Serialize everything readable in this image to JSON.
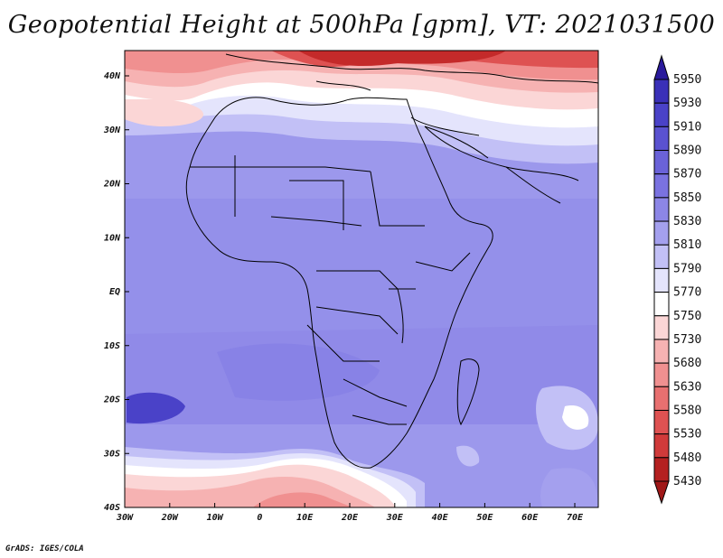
{
  "title": "Geopotential Height at 500hPa [gpm], VT: 2021031500",
  "footer": "GrADS: IGES/COLA",
  "lat_labels": [
    "40N",
    "30N",
    "20N",
    "10N",
    "EQ",
    "10S",
    "20S",
    "30S",
    "40S"
  ],
  "lon_labels": [
    "30W",
    "20W",
    "10W",
    "0",
    "10E",
    "20E",
    "30E",
    "40E",
    "50E",
    "60E",
    "70E"
  ],
  "colorbar": {
    "levels": [
      "5950",
      "5930",
      "5910",
      "5890",
      "5870",
      "5850",
      "5830",
      "5810",
      "5790",
      "5770",
      "5750",
      "5730",
      "5680",
      "5630",
      "5580",
      "5530",
      "5480",
      "5430"
    ],
    "colors": [
      "#2a1a9c",
      "#3a30b8",
      "#4a42c8",
      "#5a52d0",
      "#6a62d8",
      "#7a72e0",
      "#8c86e6",
      "#a4a0ee",
      "#c2c0f6",
      "#e4e4fc",
      "#ffffff",
      "#fbd6d6",
      "#f6b2b2",
      "#f09090",
      "#e87070",
      "#de5252",
      "#d03a3a",
      "#b42020",
      "#a01818"
    ]
  },
  "chart_data": {
    "type": "filled-contour-map",
    "title": "Geopotential Height at 500hPa [gpm], VT: 2021031500",
    "variable": "Geopotential height at 500 hPa",
    "units": "gpm",
    "valid_time": "2021031500",
    "lon_range": [
      -30,
      75
    ],
    "lat_range": [
      -40,
      45
    ],
    "contour_levels": [
      5430,
      5480,
      5530,
      5580,
      5630,
      5680,
      5730,
      5750,
      5770,
      5790,
      5810,
      5830,
      5850,
      5870,
      5890,
      5910,
      5930,
      5950
    ]
  }
}
